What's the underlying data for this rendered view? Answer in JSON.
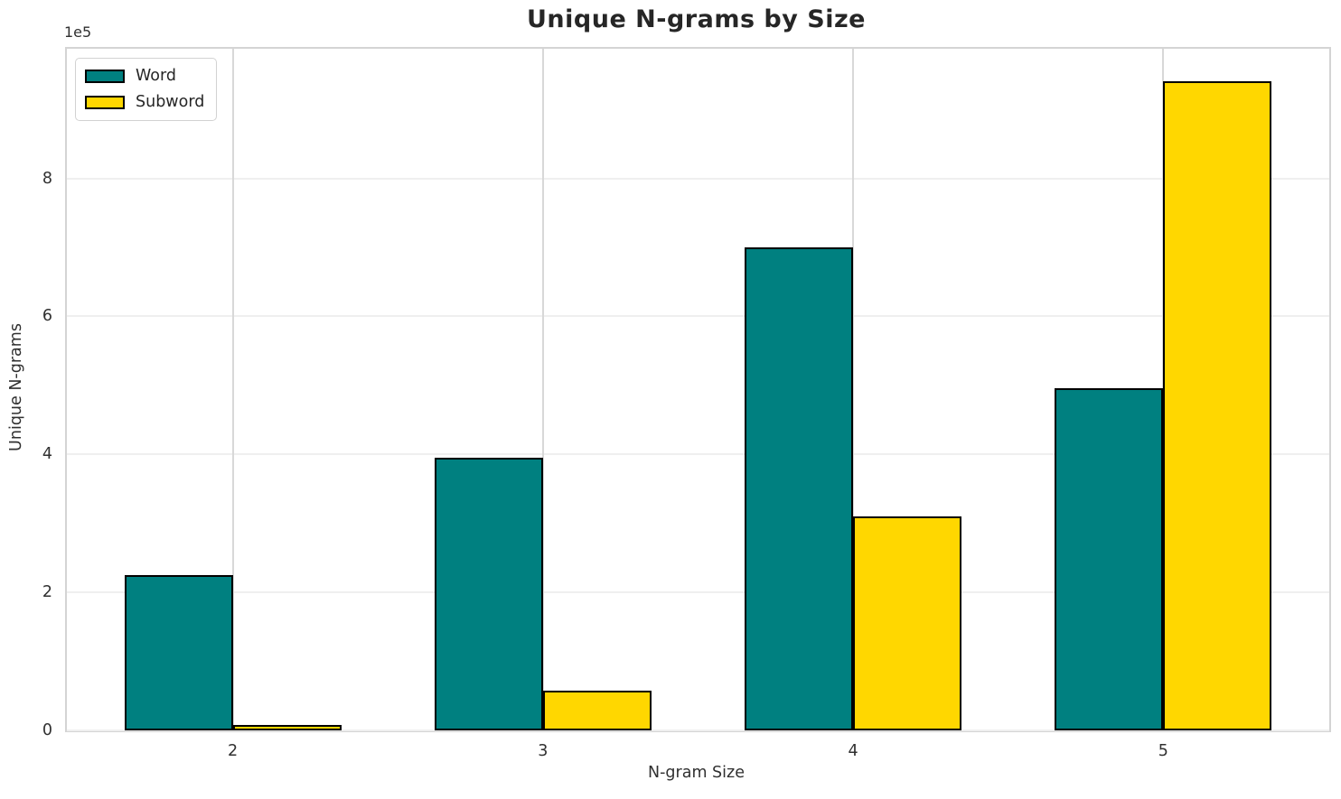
{
  "chart_data": {
    "type": "bar",
    "title": "Unique N-grams by Size",
    "xlabel": "N-gram Size",
    "ylabel": "Unique N-grams",
    "y_scale_offset_label": "1e5",
    "categories": [
      "2",
      "3",
      "4",
      "5"
    ],
    "series": [
      {
        "name": "Word",
        "color": "#008080",
        "values": [
          225000,
          395000,
          700000,
          496000
        ]
      },
      {
        "name": "Subword",
        "color": "#FFD700",
        "values": [
          8000,
          57000,
          310000,
          941000
        ]
      }
    ],
    "bar_edge_color": "#000000",
    "bar_width_units": 0.35,
    "xlim": [
      1.465,
      5.535
    ],
    "ylim": [
      0,
      988000
    ],
    "yticks": [
      0,
      200000,
      400000,
      600000,
      800000
    ],
    "ytick_labels": [
      "0",
      "2",
      "4",
      "6",
      "8"
    ],
    "grid": true,
    "legend_position": "upper left",
    "style": {
      "horizontal_gridline": "#efefef",
      "vertical_gridline": "#d8d8d8",
      "spine": "#d4d4d4",
      "text_color": "#303030",
      "title_color": "#262626",
      "background": "#ffffff"
    }
  }
}
